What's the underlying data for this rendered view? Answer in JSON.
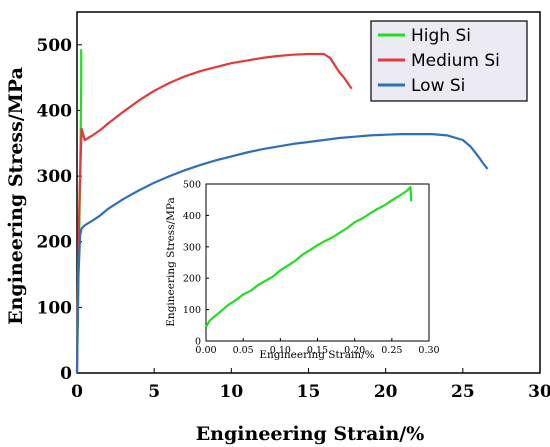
{
  "chart_data": [
    {
      "type": "line",
      "xlabel": "Engineering Strain/%",
      "ylabel": "Engineering Stress/MPa",
      "xlim": [
        0,
        30
      ],
      "ylim": [
        0,
        550
      ],
      "xticks": [
        0,
        5,
        10,
        15,
        20,
        25,
        30
      ],
      "yticks": [
        0,
        100,
        200,
        300,
        400,
        500
      ],
      "grid": false,
      "legend": "top-right",
      "series": [
        {
          "name": "High Si",
          "color": "#22dd22",
          "x": [
            0.0,
            0.02,
            0.05,
            0.08,
            0.12,
            0.16,
            0.2,
            0.24,
            0.27,
            0.275,
            0.28
          ],
          "y": [
            0,
            60,
            100,
            140,
            180,
            240,
            300,
            370,
            440,
            492,
            450
          ]
        },
        {
          "name": "Medium Si",
          "color": "#e23a3a",
          "x": [
            0.0,
            0.1,
            0.2,
            0.3,
            0.5,
            1,
            1.5,
            2,
            3,
            4,
            5,
            6,
            7,
            8,
            9,
            10,
            11,
            12,
            13,
            14,
            15,
            16,
            16.4,
            17,
            17.3,
            17.8
          ],
          "y": [
            0,
            200,
            300,
            372,
            355,
            362,
            370,
            380,
            398,
            415,
            430,
            442,
            452,
            460,
            466,
            472,
            476,
            480,
            483,
            485,
            486,
            486,
            480,
            458,
            450,
            433
          ]
        },
        {
          "name": "Low Si",
          "color": "#2f6fb7",
          "x": [
            0.0,
            0.1,
            0.2,
            0.3,
            0.5,
            1,
            1.5,
            2,
            3,
            4,
            5,
            6,
            7,
            8,
            9,
            10,
            11,
            12,
            13,
            14,
            15,
            16,
            17,
            18,
            19,
            20,
            21,
            22,
            23,
            24,
            25,
            25.5,
            26,
            26.3,
            26.6
          ],
          "y": [
            0,
            150,
            210,
            220,
            225,
            232,
            240,
            250,
            265,
            278,
            290,
            300,
            309,
            317,
            324,
            330,
            336,
            341,
            345,
            349,
            352,
            355,
            358,
            360,
            362,
            363,
            364,
            364,
            364,
            362,
            355,
            345,
            330,
            320,
            311
          ]
        }
      ]
    },
    {
      "type": "line",
      "xlabel": "Engineering Strain/%",
      "ylabel": "Engineering Stress/MPa",
      "xlim": [
        0,
        0.3
      ],
      "ylim": [
        0,
        500
      ],
      "xticks": [
        "0.00",
        "0.05",
        "0.10",
        "0.15",
        "0.20",
        "0.25",
        "0.30"
      ],
      "yticks": [
        0,
        100,
        200,
        300,
        400,
        500
      ],
      "grid": false,
      "series": [
        {
          "color": "#22dd22",
          "x": [
            0.0,
            0.005,
            0.01,
            0.02,
            0.03,
            0.04,
            0.05,
            0.06,
            0.07,
            0.08,
            0.09,
            0.1,
            0.11,
            0.12,
            0.13,
            0.14,
            0.15,
            0.16,
            0.17,
            0.18,
            0.19,
            0.2,
            0.21,
            0.22,
            0.23,
            0.24,
            0.25,
            0.26,
            0.27,
            0.275,
            0.276
          ],
          "y": [
            45,
            65,
            75,
            95,
            115,
            130,
            148,
            160,
            178,
            192,
            205,
            225,
            240,
            255,
            275,
            290,
            305,
            318,
            330,
            345,
            360,
            378,
            390,
            405,
            420,
            432,
            448,
            462,
            478,
            490,
            445
          ]
        }
      ]
    }
  ]
}
